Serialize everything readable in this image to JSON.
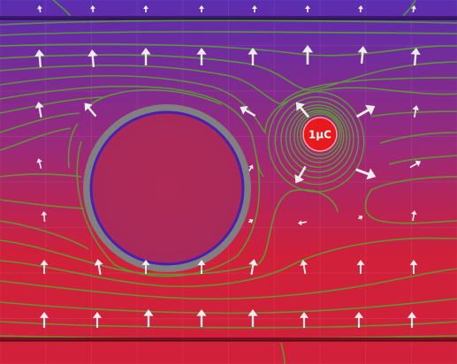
{
  "simulation": {
    "background": {
      "top_color": "#5a2db0",
      "mid_color": "#9a2a7a",
      "bottom_color": "#d0203a"
    },
    "plates": {
      "top_color": "#3a1a6e",
      "bottom_color": "#7a0f1f"
    },
    "point_charge": {
      "label": "1μC",
      "fill": "#e8191c",
      "stroke": "#f2a0a0"
    },
    "ring_conductor": {
      "outer_color": "#808080",
      "inner_color": "#4a20b0"
    },
    "equipotential_color": "#5aa032",
    "field_arrow_color": "#ececec",
    "grid": true
  }
}
